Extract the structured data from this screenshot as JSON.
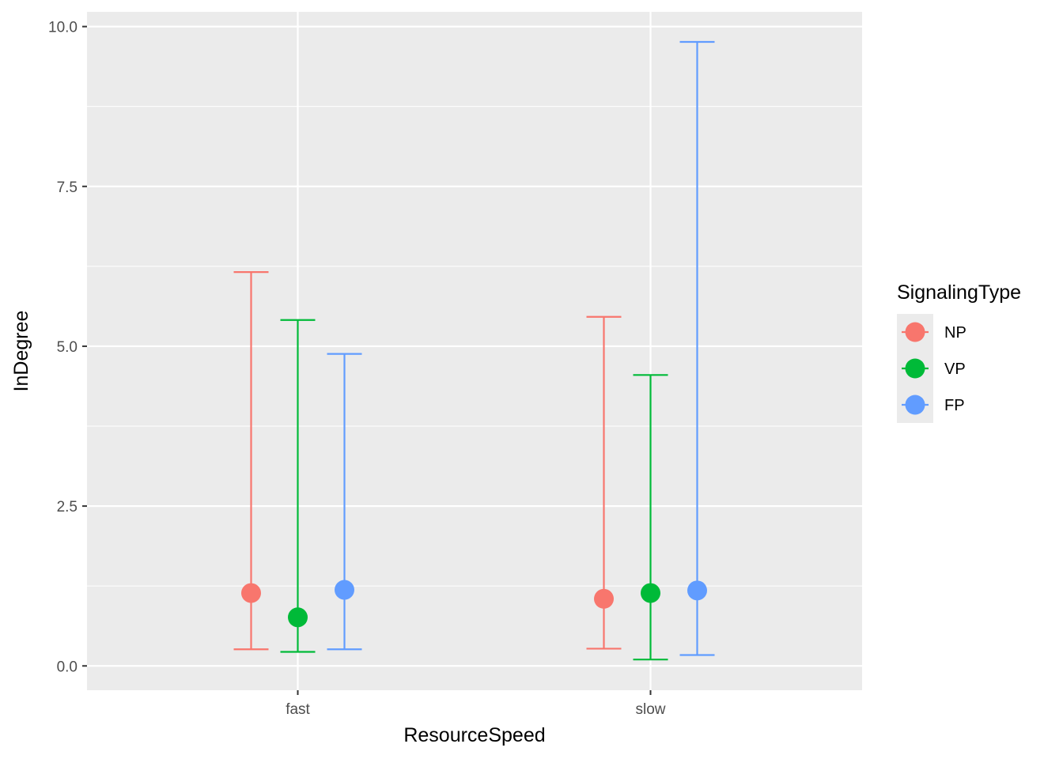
{
  "chart_data": {
    "type": "scatter",
    "subtype": "point-errorbar",
    "xlabel": "ResourceSpeed",
    "ylabel": "InDegree",
    "categories": [
      "fast",
      "slow"
    ],
    "ylim": [
      -0.38,
      10.23
    ],
    "yticks": [
      0.0,
      2.5,
      5.0,
      7.5,
      10.0
    ],
    "ytick_labels": [
      "0.0",
      "2.5",
      "5.0",
      "7.5",
      "10.0"
    ],
    "grid": true,
    "legend": {
      "title": "SignalingType",
      "position": "right"
    },
    "series": [
      {
        "name": "NP",
        "color": "#F8766D",
        "points": [
          {
            "x": "fast",
            "y": 1.14,
            "ymin": 0.26,
            "ymax": 6.16
          },
          {
            "x": "slow",
            "y": 1.05,
            "ymin": 0.27,
            "ymax": 5.46
          }
        ]
      },
      {
        "name": "VP",
        "color": "#00BA38",
        "points": [
          {
            "x": "fast",
            "y": 0.76,
            "ymin": 0.22,
            "ymax": 5.41
          },
          {
            "x": "slow",
            "y": 1.14,
            "ymin": 0.1,
            "ymax": 4.55
          }
        ]
      },
      {
        "name": "FP",
        "color": "#619CFF",
        "points": [
          {
            "x": "fast",
            "y": 1.19,
            "ymin": 0.26,
            "ymax": 4.88
          },
          {
            "x": "slow",
            "y": 1.18,
            "ymin": 0.17,
            "ymax": 9.76
          }
        ]
      }
    ]
  }
}
